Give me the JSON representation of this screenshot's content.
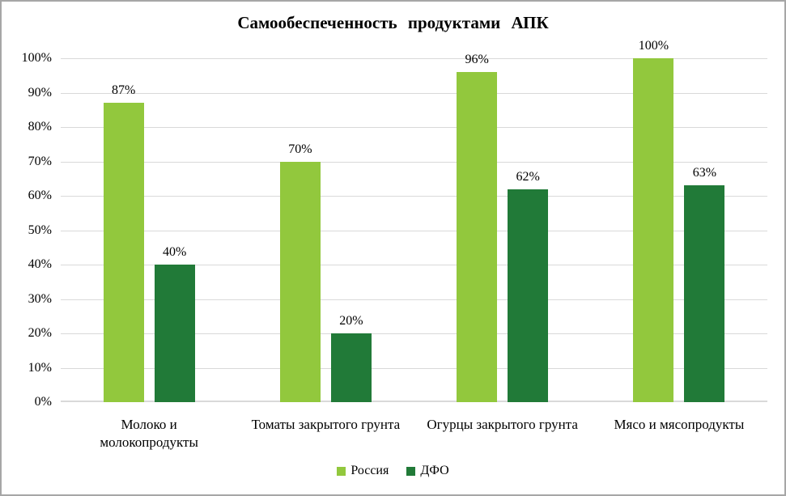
{
  "figure": {
    "background": "#ffffff",
    "border_color": "#a6a6a6"
  },
  "chart_data": {
    "type": "bar",
    "title": "Самообеспеченность продуктами АПК",
    "categories": [
      "Молоко и\nмолокопродукты",
      "Томаты закрытого грунта",
      "Огурцы закрытого грунта",
      "Мясо и мясопродукты"
    ],
    "series": [
      {
        "name": "Россия",
        "color": "#92c83d",
        "values": [
          87,
          70,
          96,
          100
        ],
        "labels": [
          "87%",
          "70%",
          "96%",
          "100%"
        ]
      },
      {
        "name": "ДФО",
        "color": "#217a38",
        "values": [
          40,
          20,
          62,
          63
        ],
        "labels": [
          "40%",
          "20%",
          "62%",
          "63%"
        ]
      }
    ],
    "ylim": [
      0,
      100
    ],
    "y_step": 10,
    "y_tick_labels": [
      "0%",
      "10%",
      "20%",
      "30%",
      "40%",
      "50%",
      "60%",
      "70%",
      "80%",
      "90%",
      "100%"
    ],
    "grid": true,
    "gridline_color": "#d9d9d9",
    "axis_line_color": "#d9d9d9",
    "legend_position": "bottom"
  }
}
